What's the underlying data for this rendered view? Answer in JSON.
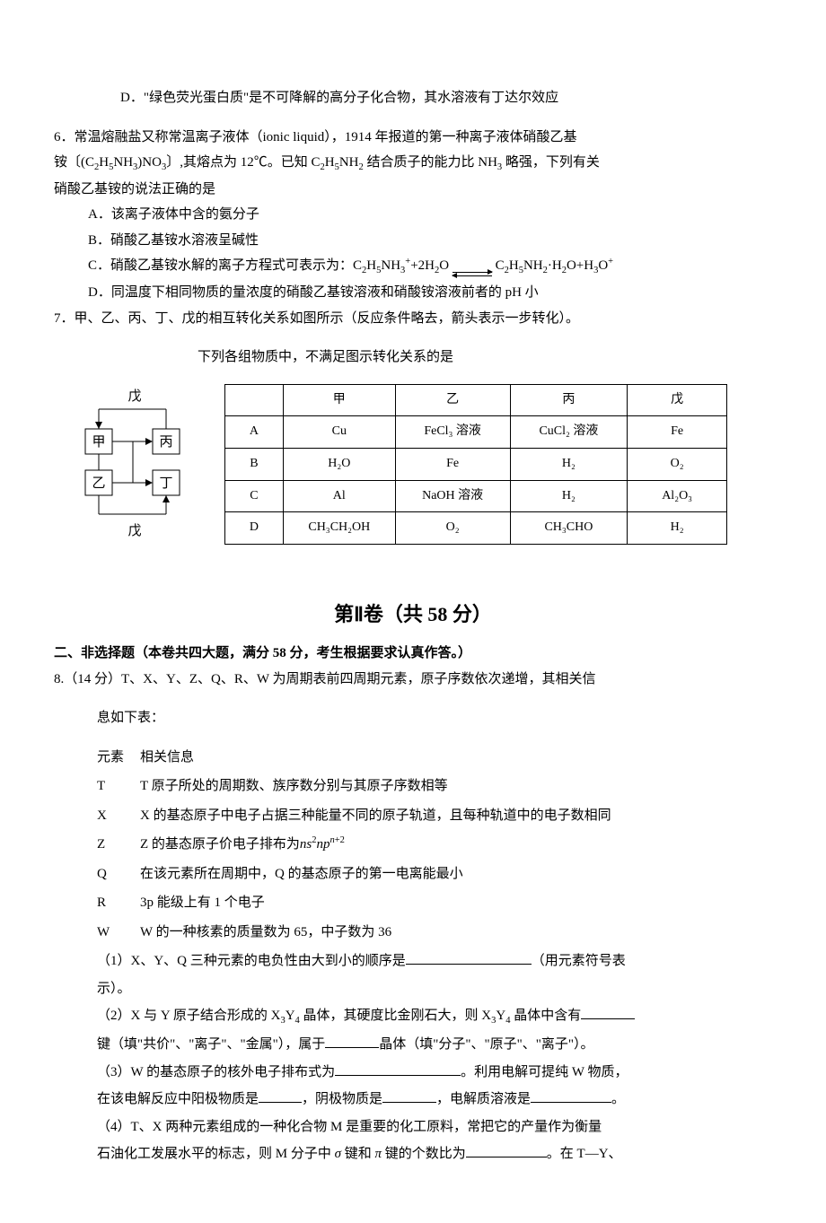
{
  "q5": {
    "optD": "D．\"绿色荧光蛋白质\"是不可降解的高分子化合物，其水溶液有丁达尔效应"
  },
  "q6": {
    "stem1": "6．常温熔融盐又称常温离子液体（ionic liquid），1914 年报道的第一种离子液体硝酸乙基",
    "stem2_pre": "铵〔(C",
    "stem2_mid": "NH",
    "stem2_aft": ")NO",
    "stem2_rest": "〕,其熔点为 12℃。已知 C",
    "stem2_rest2": "H",
    "stem2_rest3": "NH",
    "stem2_rest4": " 结合质子的能力比 NH",
    "stem2_rest5": " 略强，下列有关",
    "stem3": "硝酸乙基铵的说法正确的是",
    "optA": "A．该离子液体中含的氨分子",
    "optB": "B．硝酸乙基铵水溶液呈碱性",
    "optC_pre": "C．硝酸乙基铵水解的离子方程式可表示为：C",
    "optC_mid1": "H",
    "optC_mid2": "NH",
    "optC_plus": "+2H",
    "optC_o": "O",
    "optC_rhs1": "C",
    "optC_rhs2": "H",
    "optC_rhs3": "NH",
    "optC_rhs4": "·H",
    "optC_rhs5": "O+H",
    "optC_rhs6": "O",
    "optD": "D．同温度下相同物质的量浓度的硝酸乙基铵溶液和硝酸铵溶液前者的 pH 小"
  },
  "q7": {
    "stem1": "7．甲、乙、丙、丁、戊的相互转化关系如图所示（反应条件略去，箭头表示一步转化）。",
    "stem2": "下列各组物质中，不满足图示转化关系的是",
    "diagram": {
      "topLabel": "戊",
      "box1": "甲",
      "box2": "丙",
      "box3": "乙",
      "box4": "丁",
      "botLabel": "戊"
    },
    "table": {
      "headers": [
        "",
        "甲",
        "乙",
        "丙",
        "戊"
      ],
      "rows": [
        [
          "A",
          "Cu",
          "FeCl₃ 溶液",
          "CuCl₂ 溶液",
          "Fe"
        ],
        [
          "B",
          "H₂O",
          "Fe",
          "H₂",
          "O₂"
        ],
        [
          "C",
          "Al",
          "NaOH 溶液",
          "H₂",
          "Al₂O₃"
        ],
        [
          "D",
          "CH₃CH₂OH",
          "O₂",
          "CH₃CHO",
          "H₂"
        ]
      ],
      "col_widths": [
        "60px",
        "120px",
        "130px",
        "130px",
        "110px"
      ]
    }
  },
  "section2": {
    "title": "第Ⅱ卷（共 58 分）",
    "subhead": "二、非选择题（本卷共四大题，满分 58 分，考生根据要求认真作答。）"
  },
  "q8": {
    "stem1": "8.（14 分）T、X、Y、Z、Q、R、W 为周期表前四周期元素，原子序数依次递增，其相关信",
    "stem2": "息如下表：",
    "thead_k": "元素",
    "thead_v": "相关信息",
    "rows": [
      {
        "k": "T",
        "v": "T 原子所处的周期数、族序数分别与其原子序数相等"
      },
      {
        "k": "X",
        "v": "X 的基态原子中电子占据三种能量不同的原子轨道，且每种轨道中的电子数相同"
      },
      {
        "k": "Z",
        "v_pre": "Z 的基态原子价电子排布为",
        "v_html": true
      },
      {
        "k": "Q",
        "v": "在该元素所在周期中，Q 的基态原子的第一电离能最小"
      },
      {
        "k": "R",
        "v": "3p 能级上有 1 个电子"
      },
      {
        "k": "W",
        "v": "W 的一种核素的质量数为 65，中子数为 36"
      }
    ],
    "sub1_a": "（1）X、Y、Q 三种元素的电负性由大到小的顺序是",
    "sub1_b": "（用元素符号表",
    "sub1_c": "示）。",
    "sub2_a": "（2）X 与 Y 原子结合形成的 X",
    "sub2_b": "Y",
    "sub2_c": " 晶体，其硬度比金刚石大，则 X",
    "sub2_d": "Y",
    "sub2_e": " 晶体中含有",
    "sub2_f": "键（填\"共价\"、\"离子\"、\"金属\"），属于",
    "sub2_g": "晶体（填\"分子\"、\"原子\"、\"离子\"）。",
    "sub3_a": "（3）W 的基态原子的核外电子排布式为",
    "sub3_b": "。利用电解可提纯 W 物质，",
    "sub3_c": "在该电解反应中阳极物质是",
    "sub3_d": "，阴极物质是",
    "sub3_e": "，电解质溶液是",
    "sub3_f": "。",
    "sub4_a": "（4）T、X 两种元素组成的一种化合物 M 是重要的化工原料，常把它的产量作为衡量",
    "sub4_b": "石油化工发展水平的标志，则 M 分子中",
    "sub4_c": " 键和",
    "sub4_d": " 键的个数比为",
    "sub4_e": "。在 T—Y、"
  }
}
